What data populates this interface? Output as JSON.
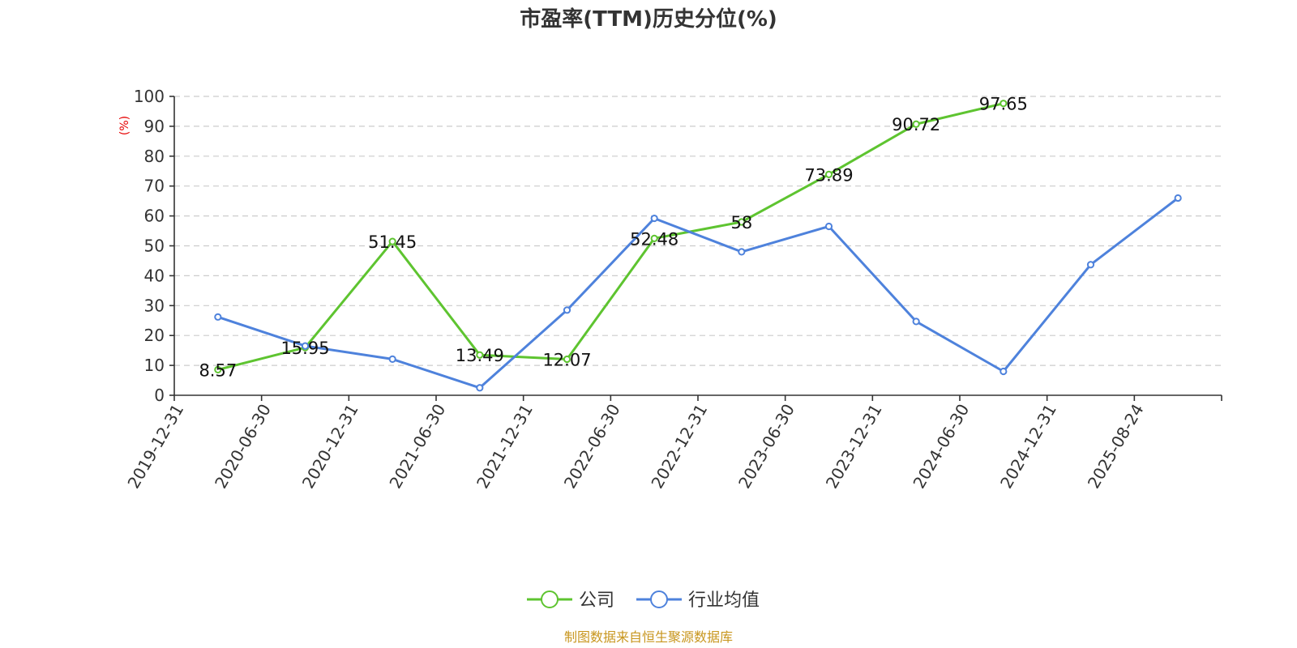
{
  "chart_data": {
    "type": "line",
    "title": "市盈率(TTM)历史分位(%)",
    "ylabel": "(%)",
    "ylim": [
      0,
      100
    ],
    "yticks": [
      0,
      10,
      20,
      30,
      40,
      50,
      60,
      70,
      80,
      90,
      100
    ],
    "grid": true,
    "legend_position": "bottom-center",
    "categories": [
      "2019-12-31",
      "2020-06-30",
      "2020-12-31",
      "2021-06-30",
      "2021-12-31",
      "2022-06-30",
      "2022-12-31",
      "2023-06-30",
      "2023-12-31",
      "2024-06-30",
      "2024-12-31",
      "2025-08-24"
    ],
    "series": [
      {
        "name": "公司",
        "color": "#5ec430",
        "values": [
          8.57,
          15.95,
          51.45,
          13.49,
          12.07,
          52.48,
          58,
          73.89,
          90.72,
          97.65,
          null,
          null
        ],
        "labels": [
          "8.57",
          "15.95",
          "51.45",
          "13.49",
          "12.07",
          "52.48",
          "58",
          "73.89",
          "90.72",
          "97.65",
          "",
          ""
        ]
      },
      {
        "name": "行业均值",
        "color": "#4e82dc",
        "values": [
          26.2,
          16.5,
          12.1,
          2.5,
          28.5,
          59.2,
          48,
          56.5,
          24.7,
          8,
          43.7,
          66
        ]
      }
    ]
  },
  "source_text": "制图数据来自恒生聚源数据库"
}
